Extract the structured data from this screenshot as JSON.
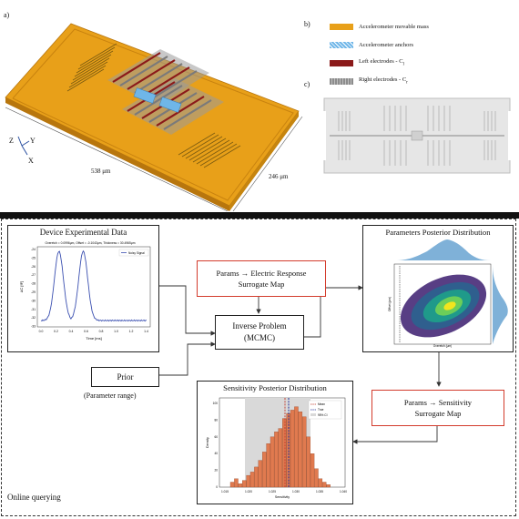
{
  "top": {
    "label_a": "a)",
    "label_b": "b)",
    "label_c": "c)",
    "dim_length": "538 μm",
    "dim_width": "246 μm",
    "axes": {
      "z": "Z",
      "y": "Y",
      "x": "X"
    },
    "legend": [
      {
        "label": "Accelerometer movable mass",
        "color": "#e8a019"
      },
      {
        "label": "Accelerometer anchors",
        "color": "#6fb6e8"
      },
      {
        "label": "Left electrodes - C",
        "sub": "l",
        "color": "#8b1a1a"
      },
      {
        "label": "Right electrodes - C",
        "sub": "r",
        "color": "#8c8c8c"
      }
    ]
  },
  "workflow": {
    "device_data": {
      "title": "Device Experimental Data",
      "plot_caption": "Overetch = 0.0996μm, Offset = -0.1043μm, Thickness = 30.4965μm",
      "legend": "Noisy Signal",
      "ylabel": "ΔC [fF]",
      "xlabel": "Time [ms]",
      "xticks": [
        "0.0",
        "0.2",
        "0.4",
        "0.6",
        "0.8",
        "1.0",
        "1.2",
        "1.4"
      ],
      "yticks": [
        "-24",
        "-25",
        "-26",
        "-27",
        "-28",
        "-29",
        "-30",
        "-31",
        "-32",
        "-33"
      ]
    },
    "surrogate_electric": {
      "line1": "Params → Electric Response",
      "line2": "Surrogate Map"
    },
    "inverse_problem": {
      "line1": "Inverse Problem",
      "line2": "(MCMC)"
    },
    "prior": {
      "label": "Prior",
      "caption": "(Parameter range)"
    },
    "posterior": {
      "title": "Parameters Posterior Distribution",
      "xlabel": "Overetch (μm)",
      "ylabel": "Offset (μm)"
    },
    "surrogate_sensitivity": {
      "line1": "Params → Sensitivity",
      "line2": "Surrogate Map"
    },
    "sensitivity": {
      "title": "Sensitivity Posterior Distribution",
      "legend": [
        "Mean",
        "True",
        "95% CI"
      ],
      "xlabel": "Sensitivity",
      "ylabel": "Density",
      "xticks": [
        "1.015",
        "1.020",
        "1.025",
        "1.030",
        "1.035",
        "1.040"
      ],
      "yticks": [
        "0",
        "20",
        "40",
        "60",
        "80",
        "100"
      ]
    },
    "online_label": "Online querying"
  },
  "colors": {
    "mass": "#e8a019",
    "separator": "#111111",
    "redbox": "#d33b2c",
    "hist": "#e07a4f",
    "posterior": "#7fb1d8"
  }
}
